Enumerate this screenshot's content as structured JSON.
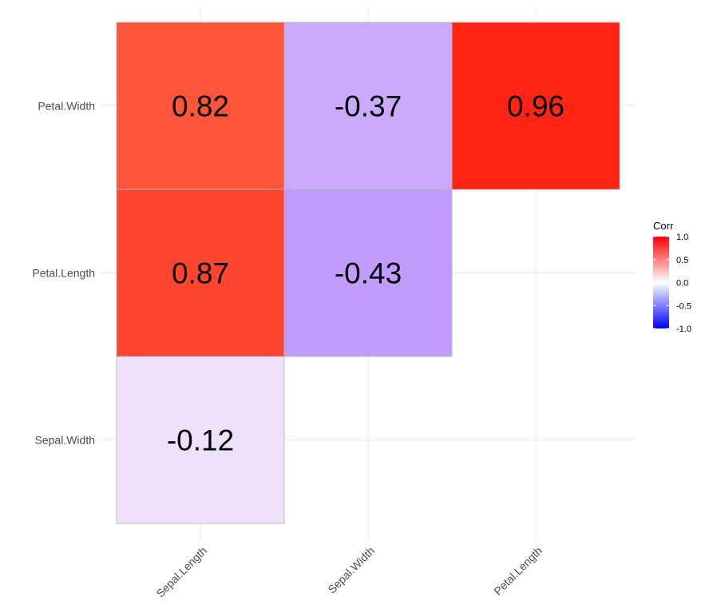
{
  "chart_data": {
    "type": "heatmap",
    "x_categories": [
      "Sepal.Length",
      "Sepal.Width",
      "Petal.Length"
    ],
    "y_categories": [
      "Sepal.Width",
      "Petal.Length",
      "Petal.Width"
    ],
    "cells": [
      {
        "x": "Sepal.Length",
        "y": "Sepal.Width",
        "value": -0.12,
        "label": "-0.12",
        "color": "#efe1fd"
      },
      {
        "x": "Sepal.Length",
        "y": "Petal.Length",
        "value": 0.87,
        "label": "0.87",
        "color": "#ff4530"
      },
      {
        "x": "Sepal.Width",
        "y": "Petal.Length",
        "value": -0.43,
        "label": "-0.43",
        "color": "#c19cfd"
      },
      {
        "x": "Sepal.Length",
        "y": "Petal.Width",
        "value": 0.82,
        "label": "0.82",
        "color": "#ff553a"
      },
      {
        "x": "Sepal.Width",
        "y": "Petal.Width",
        "value": -0.37,
        "label": "-0.37",
        "color": "#c9aafd"
      },
      {
        "x": "Petal.Length",
        "y": "Petal.Width",
        "value": 0.96,
        "label": "0.96",
        "color": "#ff2512"
      }
    ],
    "legend": {
      "title": "Corr",
      "position": "right",
      "ticks": [
        {
          "value": 1.0,
          "label": "1.0"
        },
        {
          "value": 0.5,
          "label": "0.5"
        },
        {
          "value": 0.0,
          "label": "0.0"
        },
        {
          "value": -0.5,
          "label": "-0.5"
        },
        {
          "value": -1.0,
          "label": "-1.0"
        }
      ],
      "limits": [
        -1,
        1
      ],
      "low_color": "#0000ff",
      "mid_color": "#ffffff",
      "high_color": "#ff0000"
    },
    "grid": true,
    "cell_border_color": "#b3b3b3",
    "grid_color": "#ebebeb",
    "tick_label_color": "#4d4d4d"
  }
}
